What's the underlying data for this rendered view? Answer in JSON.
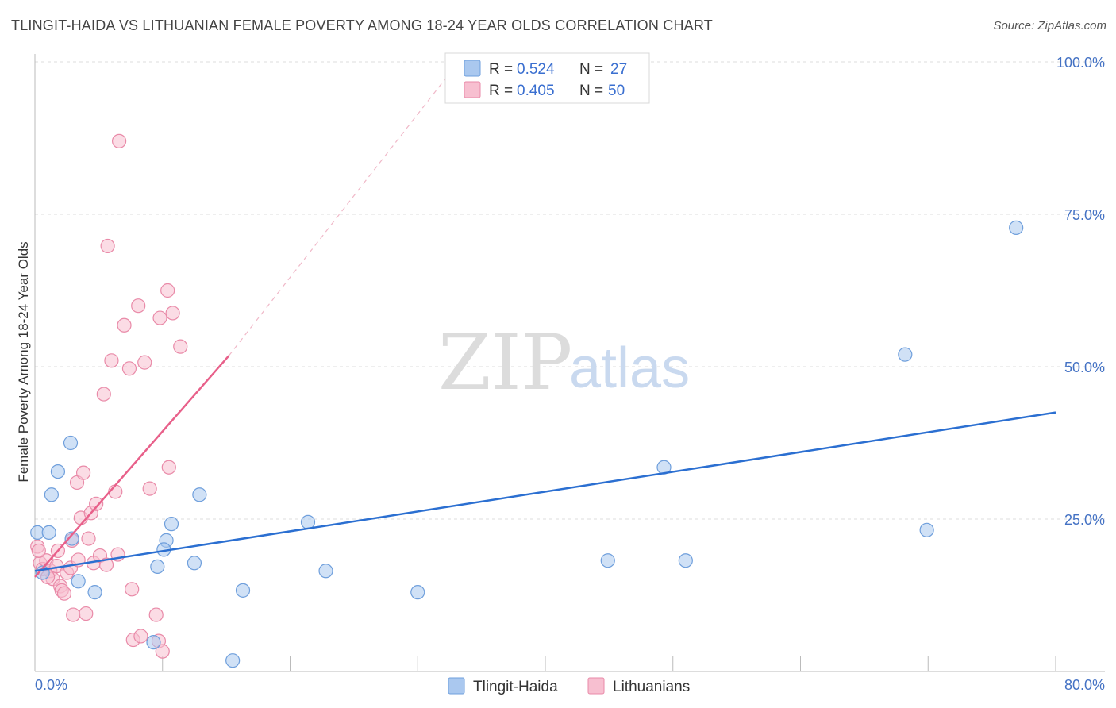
{
  "title": "TLINGIT-HAIDA VS LITHUANIAN FEMALE POVERTY AMONG 18-24 YEAR OLDS CORRELATION CHART",
  "source": "Source: ZipAtlas.com",
  "watermark": {
    "zip": "ZIP",
    "atlas": "atlas"
  },
  "colors": {
    "blue_fill": "#aac8ef",
    "blue_stroke": "#6f9fdc",
    "blue_line": "#2b6fd1",
    "pink_fill": "#f7bfd0",
    "pink_stroke": "#e98aa8",
    "pink_line": "#e8608a",
    "grid": "#dddddd",
    "axis_text": "#4472c4"
  },
  "legend": {
    "rows": [
      {
        "r_label": "R =",
        "r_value": "0.524",
        "n_label": "N =",
        "n_value": "27"
      },
      {
        "r_label": "R =",
        "r_value": "0.405",
        "n_label": "N =",
        "n_value": "50"
      }
    ]
  },
  "bottom_legend": [
    "Tlingit-Haida",
    "Lithuanians"
  ],
  "chart_data": {
    "type": "scatter",
    "title": "TLINGIT-HAIDA VS LITHUANIAN FEMALE POVERTY AMONG 18-24 YEAR OLDS CORRELATION CHART",
    "xlabel": "",
    "ylabel": "Female Poverty Among 18-24 Year Olds",
    "xlim": [
      0,
      80
    ],
    "ylim": [
      0,
      100
    ],
    "x_tick_labels": [
      "0.0%",
      "80.0%"
    ],
    "y_ticks": [
      25,
      50,
      75,
      100
    ],
    "y_tick_labels": [
      "25.0%",
      "50.0%",
      "75.0%",
      "100.0%"
    ],
    "grid": true,
    "series": [
      {
        "name": "Tlingit-Haida",
        "R": 0.524,
        "N": 27,
        "points": [
          [
            0.2,
            22.8
          ],
          [
            0.6,
            16.2
          ],
          [
            1.1,
            22.8
          ],
          [
            1.3,
            29.0
          ],
          [
            1.8,
            32.8
          ],
          [
            2.8,
            37.5
          ],
          [
            2.9,
            21.8
          ],
          [
            3.4,
            14.8
          ],
          [
            4.7,
            13.0
          ],
          [
            9.6,
            17.2
          ],
          [
            10.7,
            24.2
          ],
          [
            10.3,
            21.5
          ],
          [
            10.1,
            20.0
          ],
          [
            12.5,
            17.8
          ],
          [
            12.9,
            29.0
          ],
          [
            9.3,
            4.8
          ],
          [
            15.5,
            1.8
          ],
          [
            16.3,
            13.3
          ],
          [
            21.4,
            24.5
          ],
          [
            22.8,
            16.5
          ],
          [
            30.0,
            13.0
          ],
          [
            44.9,
            18.2
          ],
          [
            49.3,
            33.5
          ],
          [
            51.0,
            18.2
          ],
          [
            68.2,
            52.0
          ],
          [
            69.9,
            23.2
          ],
          [
            76.9,
            72.8
          ]
        ],
        "trend": {
          "x": [
            0,
            80
          ],
          "y": [
            16.5,
            42.5
          ],
          "dashed_extension": false
        }
      },
      {
        "name": "Lithuanians",
        "R": 0.405,
        "N": 50,
        "points": [
          [
            0.2,
            20.5
          ],
          [
            0.4,
            17.8
          ],
          [
            0.6,
            16.8
          ],
          [
            0.9,
            18.2
          ],
          [
            1.2,
            16.5
          ],
          [
            1.4,
            15.2
          ],
          [
            1.7,
            17.3
          ],
          [
            1.8,
            19.8
          ],
          [
            2.0,
            14.0
          ],
          [
            2.1,
            13.3
          ],
          [
            2.3,
            12.8
          ],
          [
            2.5,
            16.2
          ],
          [
            2.8,
            17.0
          ],
          [
            2.9,
            21.5
          ],
          [
            3.0,
            9.3
          ],
          [
            3.3,
            31.0
          ],
          [
            3.4,
            18.3
          ],
          [
            3.6,
            25.2
          ],
          [
            3.8,
            32.6
          ],
          [
            4.0,
            9.5
          ],
          [
            4.2,
            21.8
          ],
          [
            4.4,
            26.0
          ],
          [
            4.6,
            17.8
          ],
          [
            4.8,
            27.5
          ],
          [
            5.1,
            19.0
          ],
          [
            5.4,
            45.5
          ],
          [
            5.6,
            17.5
          ],
          [
            5.7,
            69.8
          ],
          [
            6.0,
            51.0
          ],
          [
            6.3,
            29.5
          ],
          [
            6.5,
            19.2
          ],
          [
            6.6,
            87.0
          ],
          [
            7.0,
            56.8
          ],
          [
            7.4,
            49.7
          ],
          [
            7.6,
            13.5
          ],
          [
            7.7,
            5.2
          ],
          [
            8.1,
            60.0
          ],
          [
            8.3,
            5.8
          ],
          [
            8.6,
            50.7
          ],
          [
            9.0,
            30.0
          ],
          [
            9.5,
            9.3
          ],
          [
            9.7,
            5.0
          ],
          [
            9.8,
            58.0
          ],
          [
            10.0,
            3.3
          ],
          [
            10.4,
            62.5
          ],
          [
            10.5,
            33.5
          ],
          [
            10.8,
            58.8
          ],
          [
            11.4,
            53.3
          ],
          [
            0.3,
            19.8
          ],
          [
            1.0,
            15.5
          ]
        ],
        "trend": {
          "x": [
            0,
            15.2
          ],
          "y": [
            15.5,
            51.8
          ],
          "dashed_to": [
            33.2,
            100
          ]
        }
      }
    ]
  }
}
